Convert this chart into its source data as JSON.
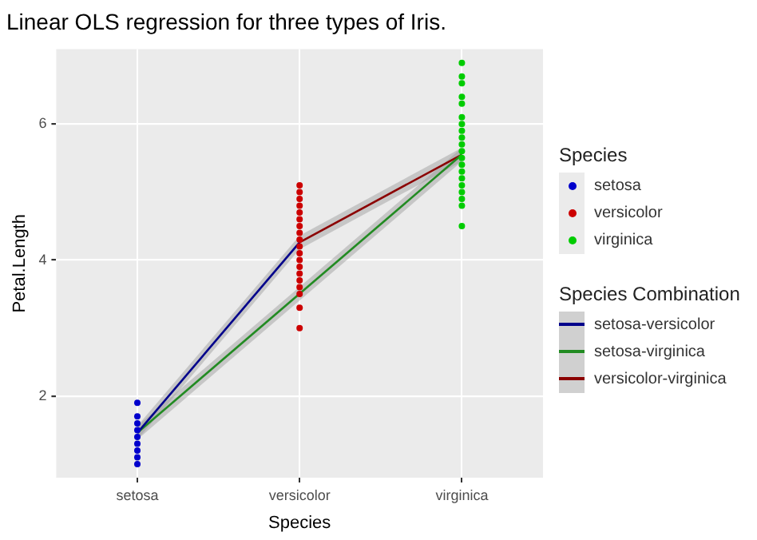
{
  "chart_data": {
    "type": "scatter",
    "title": "Linear OLS regression for three types of Iris.",
    "xlabel": "Species",
    "ylabel": "Petal.Length",
    "legend_title": "Species",
    "annotations": [
      "Species Combination"
    ],
    "legend": "right",
    "grid": true,
    "marker": "circle",
    "categories": [
      "setosa",
      "versicolor",
      "virginica"
    ],
    "ylim": [
      0.8,
      7.1
    ],
    "yticks": [
      2,
      4,
      6
    ],
    "series": [
      {
        "name": "setosa",
        "color": "#0000cc",
        "x": [
          "setosa",
          "setosa",
          "setosa",
          "setosa",
          "setosa",
          "setosa",
          "setosa",
          "setosa",
          "setosa"
        ],
        "values": [
          1.0,
          1.1,
          1.2,
          1.3,
          1.4,
          1.5,
          1.6,
          1.7,
          1.9
        ]
      },
      {
        "name": "versicolor",
        "color": "#cc0000",
        "x": [
          "versicolor",
          "versicolor",
          "versicolor",
          "versicolor",
          "versicolor",
          "versicolor",
          "versicolor",
          "versicolor",
          "versicolor",
          "versicolor",
          "versicolor",
          "versicolor",
          "versicolor",
          "versicolor",
          "versicolor",
          "versicolor",
          "versicolor",
          "versicolor",
          "versicolor"
        ],
        "values": [
          3.0,
          3.3,
          3.5,
          3.6,
          3.7,
          3.8,
          3.9,
          4.0,
          4.1,
          4.2,
          4.3,
          4.4,
          4.5,
          4.6,
          4.7,
          4.8,
          4.9,
          5.0,
          5.1
        ]
      },
      {
        "name": "virginica",
        "color": "#00cc00",
        "x": [
          "virginica",
          "virginica",
          "virginica",
          "virginica",
          "virginica",
          "virginica",
          "virginica",
          "virginica",
          "virginica",
          "virginica",
          "virginica",
          "virginica",
          "virginica",
          "virginica",
          "virginica",
          "virginica",
          "virginica",
          "virginica",
          "virginica",
          "virginica"
        ],
        "values": [
          4.5,
          4.8,
          4.9,
          5.0,
          5.1,
          5.2,
          5.3,
          5.4,
          5.5,
          5.6,
          5.7,
          5.8,
          5.9,
          6.0,
          6.1,
          6.3,
          6.4,
          6.6,
          6.7,
          6.9
        ]
      },
      {
        "name": "setosa-versicolor",
        "type": "line",
        "marker": "none",
        "color": "#00008b",
        "x": [
          "setosa",
          "versicolor"
        ],
        "values": [
          1.46,
          4.26
        ],
        "lower": [
          1.36,
          4.16
        ],
        "upper": [
          1.56,
          4.36
        ]
      },
      {
        "name": "setosa-virginica",
        "type": "line",
        "marker": "none",
        "color": "#228b22",
        "x": [
          "setosa",
          "virginica"
        ],
        "values": [
          1.46,
          5.55
        ],
        "lower": [
          1.36,
          5.45
        ],
        "upper": [
          1.56,
          5.65
        ]
      },
      {
        "name": "versicolor-virginica",
        "type": "line",
        "marker": "none",
        "color": "#8b0000",
        "x": [
          "versicolor",
          "virginica"
        ],
        "values": [
          4.26,
          5.55
        ],
        "lower": [
          4.16,
          5.45
        ],
        "upper": [
          4.36,
          5.65
        ]
      }
    ]
  }
}
